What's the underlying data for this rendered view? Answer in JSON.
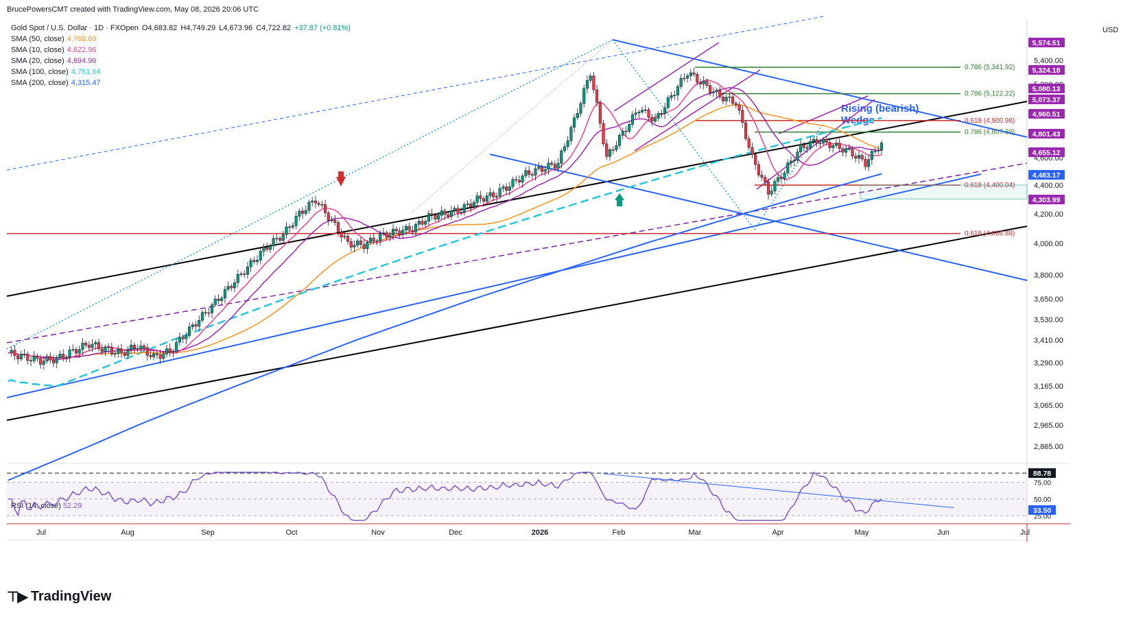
{
  "header": {
    "text": "BrucePowersCMT created with TradingView.com, May 08, 2026 20:06 UTC"
  },
  "legend": {
    "symbol": "Gold Spot / U.S. Dollar · 1D · FXOpen",
    "open": "O4,683.82",
    "high": "H4,749.29",
    "low": "L4,673.96",
    "close": "C4,722.82",
    "change": "+37.87 (+0.81%)",
    "sma": [
      {
        "label": "SMA (50, close)",
        "value": "4,768.69",
        "color": "#f7931a"
      },
      {
        "label": "SMA (10, close)",
        "value": "4,622.96",
        "color": "#f23e8a"
      },
      {
        "label": "SMA (20, close)",
        "value": "4,694.96",
        "color": "#9c27b0"
      },
      {
        "label": "SMA (100, close)",
        "value": "4,781.64",
        "color": "#26c6da"
      },
      {
        "label": "SMA (200, close)",
        "value": "4,315.47",
        "color": "#2962ff"
      }
    ]
  },
  "currency": "USD",
  "annotation": {
    "line1": "Rising (bearish)",
    "line2": "Wedge"
  },
  "rsi": {
    "label": "RSI (14, close)",
    "value": "52.29",
    "upper_badge": "88.78",
    "lower_badge": "33.50",
    "levels": [
      "75.00",
      "50.00",
      "25.00"
    ]
  },
  "footer": {
    "brand": "TradingView"
  },
  "chart_data": {
    "type": "candlestick",
    "title": "Gold Spot / U.S. Dollar · 1D · FXOpen",
    "y_axis_labels": [
      "5,400.00",
      "5,200.00",
      "5,000.00",
      "4,800.00",
      "4,600.00",
      "4,400.00",
      "4,200.00",
      "4,000.00",
      "3,800.00",
      "3,650.00",
      "3,530.00",
      "3,410.00",
      "3,290.00",
      "3,165.00",
      "3,065.00",
      "2,965.00",
      "2,865.00"
    ],
    "x_axis_labels": [
      "Jul",
      "Aug",
      "Sep",
      "Oct",
      "Nov",
      "Dec",
      "2026",
      "Feb",
      "Mar",
      "Apr",
      "May",
      "Jun",
      "Jul"
    ],
    "price_badges": [
      {
        "text": "5,574.51",
        "color": "#9c27b0"
      },
      {
        "text": "5,324.18",
        "color": "#9c27b0"
      },
      {
        "text": "5,080.13",
        "color": "#9c27b0"
      },
      {
        "text": "5,073.37",
        "color": "#9c27b0"
      },
      {
        "text": "4,960.51",
        "color": "#9c27b0"
      },
      {
        "text": "4,801.43",
        "color": "#9c27b0"
      },
      {
        "text": "4,655.12",
        "color": "#9c27b0"
      },
      {
        "text": "4,483.17",
        "color": "#2962ff"
      },
      {
        "text": "4,303.99",
        "color": "#9c27b0"
      }
    ],
    "fib_levels": [
      {
        "label": "0.786 (5,341.92)",
        "price": 5341.92,
        "color": "#2e7d32"
      },
      {
        "label": "0.786 (5,122.22)",
        "price": 5122.22,
        "color": "#2e7d32"
      },
      {
        "label": "0.618 (4,900.98)",
        "price": 4900.98,
        "color": "#c62828"
      },
      {
        "label": "0.786 (4,807.68)",
        "price": 4807.68,
        "color": "#2e7d32"
      },
      {
        "label": "0.618 (4,400.04)",
        "price": 4400.04,
        "color": "#c62828"
      },
      {
        "label": "0.618 (4,066.88)",
        "price": 4066.88,
        "color": "#c62828"
      }
    ],
    "closes_weekly": [
      3340,
      3320,
      3300,
      3310,
      3350,
      3390,
      3360,
      3340,
      3380,
      3320,
      3350,
      3450,
      3550,
      3650,
      3760,
      3870,
      3980,
      4060,
      4200,
      4300,
      4150,
      4000,
      3990,
      4050,
      4080,
      4100,
      4180,
      4200,
      4230,
      4300,
      4330,
      4400,
      4480,
      4520,
      4560,
      4900,
      5300,
      4600,
      4800,
      5000,
      4900,
      5100,
      5300,
      5200,
      5100,
      5050,
      4600,
      4350,
      4500,
      4680,
      4740,
      4700,
      4650,
      4560,
      4720
    ]
  }
}
